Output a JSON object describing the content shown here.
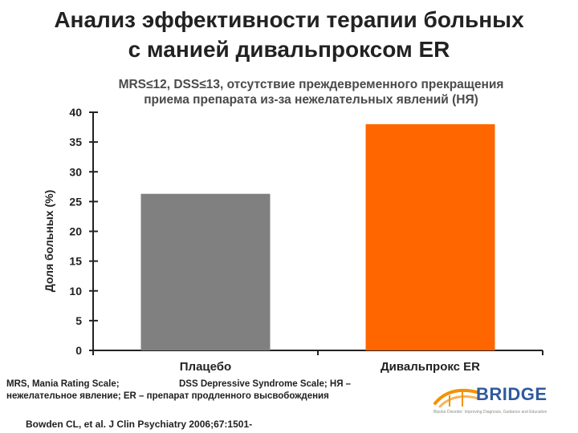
{
  "title": {
    "line1": "Анализ эффективности терапии больных",
    "line2": "с манией дивальпроксом ER"
  },
  "chart_data": {
    "type": "bar",
    "title_lines": [
      "MRS≤12, DSS≤13, отсутствие преждевременного прекращения",
      "приема препарата из-за нежелательных явлений (НЯ)"
    ],
    "xlabel": "",
    "ylabel": "Доля больных (%)",
    "categories": [
      "Плацебо",
      "Дивальпрокс ER"
    ],
    "values": [
      26.3,
      38.0
    ],
    "bar_colors": [
      "#808080",
      "#ff6600"
    ],
    "ylim": [
      0,
      40
    ],
    "yticks": [
      0,
      5,
      10,
      15,
      20,
      25,
      30,
      35,
      40
    ],
    "grid": false,
    "legend": "none"
  },
  "footnote": {
    "part1": "MRS, Mania Rating Scale;",
    "part2": "DSS Depressive Syndrome Scale; НЯ –",
    "line2": "нежелательное явление; ER – препарат продленного высвобождения"
  },
  "reference": "Bowden CL, et al. J Clin Psychiatry 2006;67:1501-",
  "logo": {
    "name": "BRIDGE",
    "tagline": "Bipolar Disorder: Improving Diagnosis, Guidance and Education",
    "color": "#2e5a9e",
    "accent": "#f39200"
  }
}
